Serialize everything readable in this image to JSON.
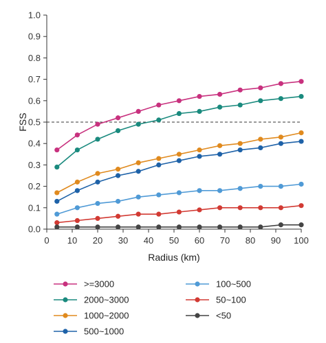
{
  "chart_data": {
    "type": "line",
    "xlabel": "Radius (km)",
    "ylabel": "FSS",
    "xlim": [
      0,
      100
    ],
    "ylim": [
      0.0,
      1.0
    ],
    "x_ticks": [
      "0",
      "10",
      "20",
      "30",
      "40",
      "50",
      "60",
      "70",
      "80",
      "90",
      "100"
    ],
    "y_ticks": [
      "0.0",
      "0.1",
      "0.2",
      "0.3",
      "0.4",
      "0.5",
      "0.6",
      "0.7",
      "0.8",
      "0.9",
      "1.0"
    ],
    "x": [
      4,
      12,
      20,
      28,
      36,
      44,
      52,
      60,
      68,
      76,
      84,
      92,
      100
    ],
    "reference_line": {
      "y": 0.5,
      "style": "dashed"
    },
    "grid": false,
    "legend_position": "bottom",
    "series": [
      {
        "name": ">=3000",
        "color": "#c8317e",
        "values": [
          0.37,
          0.44,
          0.49,
          0.52,
          0.55,
          0.58,
          0.6,
          0.62,
          0.63,
          0.65,
          0.66,
          0.68,
          0.69
        ]
      },
      {
        "name": "2000~3000",
        "color": "#1a8a7e",
        "values": [
          0.29,
          0.37,
          0.42,
          0.46,
          0.49,
          0.51,
          0.54,
          0.55,
          0.57,
          0.58,
          0.6,
          0.61,
          0.62
        ]
      },
      {
        "name": "1000~2000",
        "color": "#e08a1e",
        "values": [
          0.17,
          0.22,
          0.26,
          0.28,
          0.31,
          0.33,
          0.35,
          0.37,
          0.39,
          0.4,
          0.42,
          0.43,
          0.45
        ]
      },
      {
        "name": "500~1000",
        "color": "#1e62a8",
        "values": [
          0.13,
          0.18,
          0.22,
          0.25,
          0.27,
          0.3,
          0.32,
          0.34,
          0.35,
          0.37,
          0.38,
          0.4,
          0.41
        ]
      },
      {
        "name": "100~500",
        "color": "#4f9ad6",
        "values": [
          0.07,
          0.1,
          0.12,
          0.13,
          0.15,
          0.16,
          0.17,
          0.18,
          0.18,
          0.19,
          0.2,
          0.2,
          0.21
        ]
      },
      {
        "name": "50~100",
        "color": "#d23a33",
        "values": [
          0.03,
          0.04,
          0.05,
          0.06,
          0.07,
          0.07,
          0.08,
          0.09,
          0.1,
          0.1,
          0.1,
          0.1,
          0.11
        ]
      },
      {
        "name": "<50",
        "color": "#444444",
        "values": [
          0.01,
          0.01,
          0.01,
          0.01,
          0.01,
          0.01,
          0.01,
          0.01,
          0.01,
          0.01,
          0.01,
          0.02,
          0.02
        ]
      }
    ]
  }
}
